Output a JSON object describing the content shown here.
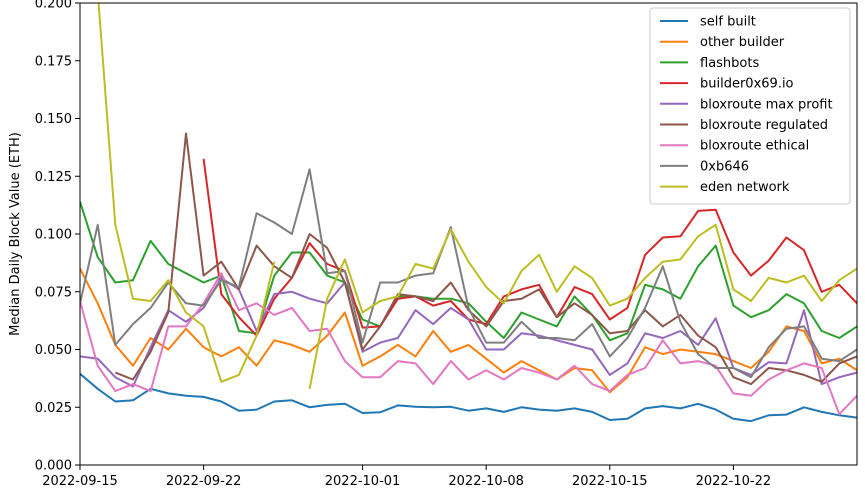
{
  "chart_data": {
    "type": "line",
    "title": "",
    "xlabel": "",
    "ylabel": "Median Daily Block Value (ETH)",
    "ylim": [
      0,
      0.2
    ],
    "xlim": [
      "2022-09-15",
      "2022-10-29"
    ],
    "yticks": [
      "0.000",
      "0.025",
      "0.050",
      "0.075",
      "0.100",
      "0.125",
      "0.150",
      "0.175",
      "0.200"
    ],
    "xticks": [
      "2022-09-15",
      "2022-09-22",
      "2022-10-01",
      "2022-10-08",
      "2022-10-15",
      "2022-10-22"
    ],
    "grid": false,
    "legend_position": "top-right",
    "x": [
      "2022-09-15",
      "2022-09-16",
      "2022-09-17",
      "2022-09-18",
      "2022-09-19",
      "2022-09-20",
      "2022-09-21",
      "2022-09-22",
      "2022-09-23",
      "2022-09-24",
      "2022-09-25",
      "2022-09-26",
      "2022-09-27",
      "2022-09-28",
      "2022-09-29",
      "2022-09-30",
      "2022-10-01",
      "2022-10-02",
      "2022-10-03",
      "2022-10-04",
      "2022-10-05",
      "2022-10-06",
      "2022-10-07",
      "2022-10-08",
      "2022-10-09",
      "2022-10-10",
      "2022-10-11",
      "2022-10-12",
      "2022-10-13",
      "2022-10-14",
      "2022-10-15",
      "2022-10-16",
      "2022-10-17",
      "2022-10-18",
      "2022-10-19",
      "2022-10-20",
      "2022-10-21",
      "2022-10-22",
      "2022-10-23",
      "2022-10-24",
      "2022-10-25",
      "2022-10-26",
      "2022-10-27",
      "2022-10-28",
      "2022-10-29"
    ],
    "series": [
      {
        "name": "self built",
        "color": "#1f77b4",
        "values": [
          0.0395,
          0.033,
          0.0275,
          0.028,
          0.033,
          0.031,
          0.03,
          0.0295,
          0.0275,
          0.0235,
          0.024,
          0.0275,
          0.028,
          0.025,
          0.026,
          0.0265,
          0.0225,
          0.0228,
          0.0258,
          0.0252,
          0.025,
          0.0252,
          0.0235,
          0.0245,
          0.023,
          0.025,
          0.024,
          0.0235,
          0.0245,
          0.023,
          0.0195,
          0.02,
          0.0245,
          0.0255,
          0.0245,
          0.0265,
          0.024,
          0.02,
          0.019,
          0.0215,
          0.0218,
          0.025,
          0.023,
          0.0215,
          0.0205
        ]
      },
      {
        "name": "other builder",
        "color": "#ff7f0e",
        "values": [
          0.085,
          0.07,
          0.052,
          0.043,
          0.055,
          0.05,
          0.059,
          0.051,
          0.047,
          0.051,
          0.043,
          0.054,
          0.052,
          0.049,
          0.056,
          0.066,
          0.043,
          0.047,
          0.052,
          0.047,
          0.058,
          0.049,
          0.052,
          0.046,
          0.04,
          0.045,
          0.041,
          0.037,
          0.042,
          0.041,
          0.0315,
          0.038,
          0.051,
          0.048,
          0.05,
          0.049,
          0.048,
          0.045,
          0.042,
          0.049,
          0.06,
          0.058,
          0.044,
          0.046,
          0.041
        ]
      },
      {
        "name": "flashbots",
        "color": "#2ca02c",
        "values": [
          0.114,
          0.09,
          0.079,
          0.08,
          0.097,
          0.087,
          0.083,
          0.079,
          0.082,
          0.058,
          0.057,
          0.082,
          0.092,
          0.092,
          0.082,
          0.079,
          0.063,
          0.06,
          0.073,
          0.073,
          0.072,
          0.072,
          0.07,
          0.062,
          0.055,
          0.066,
          0.063,
          0.06,
          0.073,
          0.065,
          0.054,
          0.057,
          0.078,
          0.076,
          0.072,
          0.086,
          0.095,
          0.069,
          0.064,
          0.067,
          0.074,
          0.07,
          0.058,
          0.055,
          0.06
        ]
      },
      {
        "name": "builder0x69.io",
        "color": "#d62728",
        "values": [
          null,
          null,
          null,
          null,
          null,
          null,
          null,
          0.1325,
          0.074,
          0.064,
          0.056,
          0.072,
          0.081,
          0.096,
          0.087,
          0.084,
          0.0595,
          0.06,
          0.072,
          0.073,
          0.069,
          0.071,
          0.063,
          0.061,
          0.073,
          0.076,
          0.078,
          0.064,
          0.077,
          0.074,
          0.063,
          0.068,
          0.091,
          0.0985,
          0.099,
          0.11,
          0.1105,
          0.092,
          0.082,
          0.0885,
          0.0985,
          0.093,
          0.075,
          0.078,
          0.07
        ]
      },
      {
        "name": "bloxroute max profit",
        "color": "#9467bd",
        "values": [
          0.047,
          0.046,
          0.038,
          0.034,
          0.051,
          0.067,
          0.062,
          0.068,
          0.081,
          0.076,
          0.058,
          0.074,
          0.075,
          0.072,
          0.07,
          0.079,
          0.049,
          0.053,
          0.055,
          0.067,
          0.061,
          0.068,
          0.063,
          0.05,
          0.05,
          0.057,
          0.056,
          0.054,
          0.052,
          0.05,
          0.039,
          0.044,
          0.057,
          0.055,
          0.058,
          0.052,
          0.0635,
          0.042,
          0.039,
          0.0445,
          0.044,
          0.067,
          0.035,
          0.038,
          0.04
        ]
      },
      {
        "name": "bloxroute regulated",
        "color": "#8c564b",
        "values": [
          null,
          null,
          0.04,
          0.037,
          0.049,
          0.066,
          0.1435,
          0.082,
          0.088,
          0.076,
          0.095,
          0.086,
          0.081,
          0.1,
          0.094,
          0.079,
          0.05,
          0.06,
          0.074,
          0.073,
          0.071,
          0.079,
          0.067,
          0.06,
          0.071,
          0.072,
          0.076,
          0.064,
          0.07,
          0.065,
          0.057,
          0.058,
          0.067,
          0.06,
          0.065,
          0.056,
          0.051,
          0.038,
          0.035,
          0.042,
          0.041,
          0.039,
          0.036,
          0.044,
          0.047
        ]
      },
      {
        "name": "bloxroute ethical",
        "color": "#e377c2",
        "values": [
          0.071,
          0.043,
          0.032,
          0.035,
          0.032,
          0.06,
          0.06,
          0.07,
          0.083,
          0.067,
          0.07,
          0.065,
          0.068,
          0.058,
          0.059,
          0.045,
          0.038,
          0.038,
          0.045,
          0.044,
          0.035,
          0.045,
          0.037,
          0.041,
          0.037,
          0.042,
          0.04,
          0.037,
          0.043,
          0.035,
          0.032,
          0.039,
          0.042,
          0.054,
          0.044,
          0.045,
          0.043,
          0.031,
          0.03,
          0.037,
          0.041,
          0.044,
          0.042,
          0.022,
          0.03
        ]
      },
      {
        "name": "0xb646",
        "color": "#7f7f7f",
        "values": [
          0.07,
          0.104,
          0.052,
          0.061,
          0.068,
          0.079,
          0.07,
          0.069,
          0.08,
          0.077,
          0.109,
          0.105,
          0.1,
          0.128,
          0.083,
          0.084,
          0.053,
          0.079,
          0.079,
          0.082,
          0.083,
          0.103,
          0.068,
          0.053,
          0.053,
          0.062,
          0.055,
          0.055,
          0.054,
          0.061,
          0.047,
          0.055,
          0.068,
          0.086,
          0.062,
          0.048,
          0.042,
          0.042,
          0.038,
          0.051,
          0.059,
          0.06,
          0.046,
          0.045,
          0.05
        ]
      },
      {
        "name": "eden network",
        "color": "#bcbd22",
        "values": [
          null,
          0.205,
          0.104,
          0.072,
          0.071,
          0.08,
          0.066,
          0.06,
          0.036,
          0.039,
          0.056,
          0.088,
          null,
          0.033,
          0.072,
          0.089,
          0.066,
          0.071,
          0.073,
          0.087,
          0.085,
          0.102,
          0.088,
          0.077,
          0.07,
          0.084,
          0.091,
          0.075,
          0.086,
          0.081,
          0.069,
          0.072,
          0.081,
          0.088,
          0.089,
          0.099,
          0.104,
          0.076,
          0.071,
          0.081,
          0.079,
          0.082,
          0.071,
          0.08,
          0.085
        ]
      }
    ]
  }
}
